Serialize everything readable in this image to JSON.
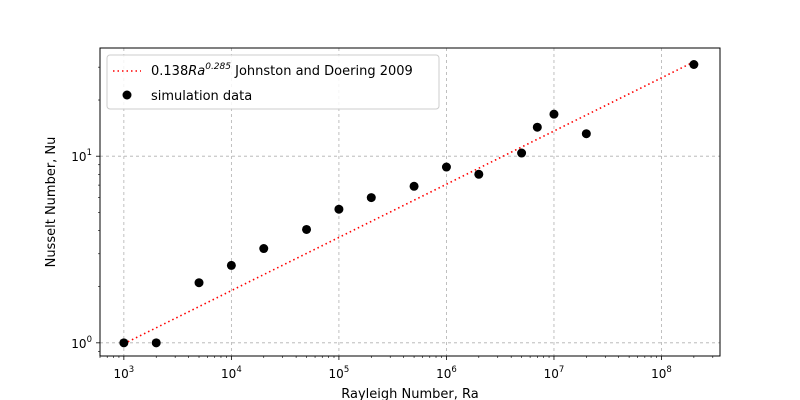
{
  "chart_data": {
    "type": "scatter",
    "xlabel": "Rayleigh Number, Ra",
    "ylabel": "Nusselt Number, Nu",
    "x_scale": "log",
    "y_scale": "log",
    "xlim": [
      600,
      350000000
    ],
    "ylim": [
      0.85,
      38
    ],
    "grid": true,
    "legend_position": "top-left",
    "x_ticks": [
      {
        "value": 1000,
        "base": "10",
        "exp": "3"
      },
      {
        "value": 10000,
        "base": "10",
        "exp": "4"
      },
      {
        "value": 100000,
        "base": "10",
        "exp": "5"
      },
      {
        "value": 1000000,
        "base": "10",
        "exp": "6"
      },
      {
        "value": 10000000,
        "base": "10",
        "exp": "7"
      },
      {
        "value": 100000000,
        "base": "10",
        "exp": "8"
      }
    ],
    "y_ticks": [
      {
        "value": 1,
        "base": "10",
        "exp": "0"
      },
      {
        "value": 10,
        "base": "10",
        "exp": "1"
      }
    ],
    "series": [
      {
        "kind": "line",
        "style": "dotted",
        "color": "#ff0000",
        "legend": {
          "coef": "0.138",
          "var": "Ra",
          "exp": "0.285",
          "rest": " Johnston and Doering 2009"
        },
        "coefficient": 0.138,
        "exponent": 0.285,
        "x_range": [
          1000,
          200000000
        ]
      },
      {
        "kind": "scatter",
        "color": "#000000",
        "legend": {
          "text": "simulation data"
        },
        "points": [
          {
            "x": 1000,
            "y": 1.0
          },
          {
            "x": 2000,
            "y": 1.0
          },
          {
            "x": 5000,
            "y": 2.1
          },
          {
            "x": 10000,
            "y": 2.6
          },
          {
            "x": 20000,
            "y": 3.2
          },
          {
            "x": 50000,
            "y": 4.05
          },
          {
            "x": 100000,
            "y": 5.2
          },
          {
            "x": 200000,
            "y": 6.0
          },
          {
            "x": 500000,
            "y": 6.9
          },
          {
            "x": 1000000,
            "y": 8.75
          },
          {
            "x": 2000000,
            "y": 8.0
          },
          {
            "x": 5000000,
            "y": 10.4
          },
          {
            "x": 7000000,
            "y": 14.3
          },
          {
            "x": 10000000,
            "y": 16.8
          },
          {
            "x": 20000000,
            "y": 13.2
          },
          {
            "x": 200000000,
            "y": 31.0
          }
        ]
      }
    ]
  }
}
